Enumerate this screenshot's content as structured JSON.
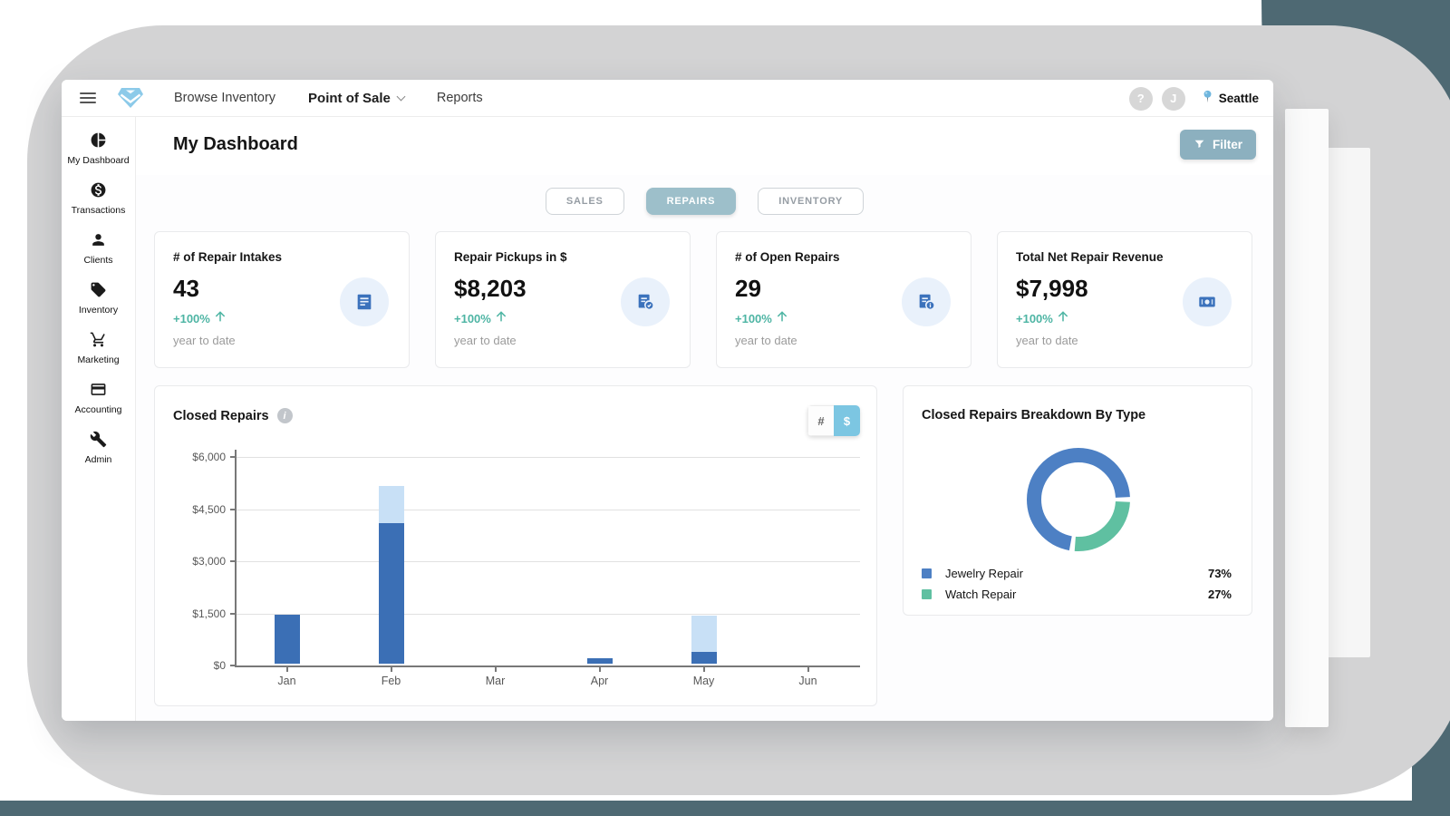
{
  "nav": {
    "brand_icon": "gem-logo-icon",
    "items": [
      {
        "label": "Browse Inventory",
        "emphasis": false,
        "dropdown": false
      },
      {
        "label": "Point of Sale",
        "emphasis": true,
        "dropdown": true
      },
      {
        "label": "Reports",
        "emphasis": false,
        "dropdown": false
      }
    ],
    "help_label": "?",
    "avatar_initial": "J",
    "location": "Seattle"
  },
  "sidebar": {
    "items": [
      {
        "label": "My Dashboard",
        "icon": "pie-chart-icon"
      },
      {
        "label": "Transactions",
        "icon": "dollar-coin-icon"
      },
      {
        "label": "Clients",
        "icon": "person-icon"
      },
      {
        "label": "Inventory",
        "icon": "tag-icon"
      },
      {
        "label": "Marketing",
        "icon": "cart-icon"
      },
      {
        "label": "Accounting",
        "icon": "card-icon"
      },
      {
        "label": "Admin",
        "icon": "wrench-icon"
      }
    ]
  },
  "header": {
    "title": "My Dashboard",
    "filter_label": "Filter",
    "filter_icon": "funnel-icon"
  },
  "tabs": [
    {
      "label": "SALES",
      "active": false
    },
    {
      "label": "REPAIRS",
      "active": true
    },
    {
      "label": "INVENTORY",
      "active": false
    }
  ],
  "stat_cards": [
    {
      "title": "# of Repair Intakes",
      "value": "43",
      "change": "+100%",
      "period": "year to date",
      "icon": "repair-intake-doc-icon"
    },
    {
      "title": "Repair Pickups in $",
      "value": "$8,203",
      "change": "+100%",
      "period": "year to date",
      "icon": "doc-check-icon"
    },
    {
      "title": "# of Open Repairs",
      "value": "29",
      "change": "+100%",
      "period": "year to date",
      "icon": "doc-info-icon"
    },
    {
      "title": "Total Net Repair Revenue",
      "value": "$7,998",
      "change": "+100%",
      "period": "year to date",
      "icon": "banknote-icon"
    }
  ],
  "closed_repairs": {
    "title": "Closed Repairs",
    "info_icon": "info-icon",
    "toggle": {
      "count_label": "#",
      "currency_label": "$",
      "active": "currency"
    }
  },
  "breakdown": {
    "title": "Closed Repairs Breakdown By Type"
  },
  "chart_data": [
    {
      "type": "bar",
      "stacked": true,
      "title": "Closed Repairs",
      "categories": [
        "Jan",
        "Feb",
        "Mar",
        "Apr",
        "May",
        "Jun"
      ],
      "series": [
        {
          "name": "closed-repairs-dark",
          "color": "#3b6fb5",
          "values": [
            1400,
            4050,
            0,
            150,
            350,
            0
          ]
        },
        {
          "name": "closed-repairs-light",
          "color": "#c8e0f6",
          "values": [
            0,
            1075,
            0,
            0,
            1025,
            0
          ]
        }
      ],
      "ylim": [
        0,
        6000
      ],
      "yticks": [
        {
          "label": "$0",
          "value": 0
        },
        {
          "label": "$1,500",
          "value": 1500
        },
        {
          "label": "$3,000",
          "value": 3000
        },
        {
          "label": "$4,500",
          "value": 4500
        },
        {
          "label": "$6,000",
          "value": 6000
        }
      ],
      "grid": true,
      "legend": "none"
    },
    {
      "type": "pie",
      "donut": true,
      "title": "Closed Repairs Breakdown By Type",
      "rotation_deg": 187,
      "slices": [
        {
          "label": "Jewelry Repair",
          "pct": 73,
          "pct_label": "73%",
          "color": "#4d80c4"
        },
        {
          "label": "Watch Repair",
          "pct": 27,
          "pct_label": "27%",
          "color": "#5fc0a1"
        }
      ],
      "legend_position": "bottom-left"
    }
  ],
  "colors": {
    "backdrop_slate": "#4e6973",
    "backdrop_blob": "#d3d3d4",
    "accent_muted_blue": "#9dbfca",
    "filter_button": "#8cb0bf",
    "toggle_active": "#7cc6e2",
    "positive_teal": "#4eb5a4",
    "stat_icon_blue": "#3b72bc",
    "stat_icon_bg": "#e9f1fb",
    "logo_blue": "#8ccae9"
  }
}
